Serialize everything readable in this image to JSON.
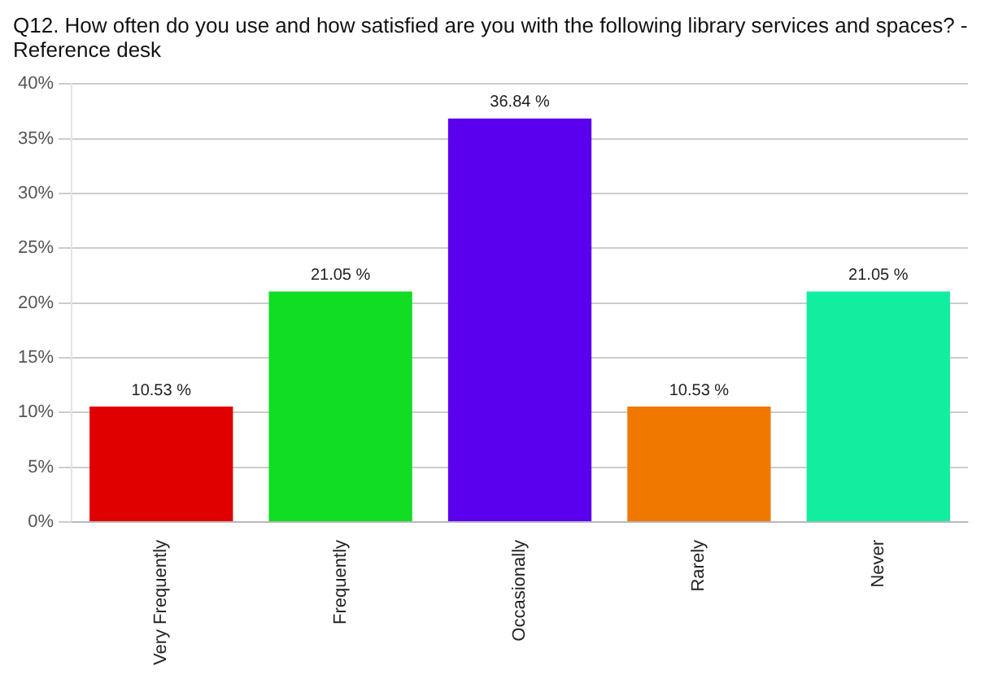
{
  "chart_data": {
    "type": "bar",
    "title": "Q12. How often do you use and how satisfied are you with the following library services and spaces? - Reference desk",
    "categories": [
      "Very Frequently",
      "Frequently",
      "Occasionally",
      "Rarely",
      "Never"
    ],
    "values": [
      10.53,
      21.05,
      36.84,
      10.53,
      21.05
    ],
    "colors": [
      "#e00000",
      "#11dd22",
      "#5a00ee",
      "#f07800",
      "#11eea0"
    ],
    "value_labels": [
      "10.53 %",
      "21.05 %",
      "36.84 %",
      "10.53 %",
      "21.05 %"
    ],
    "ylim": [
      0,
      40
    ],
    "yticks": [
      {
        "value": 0,
        "label": "0%"
      },
      {
        "value": 5,
        "label": "5%"
      },
      {
        "value": 10,
        "label": "10%"
      },
      {
        "value": 15,
        "label": "15%"
      },
      {
        "value": 20,
        "label": "20%"
      },
      {
        "value": 25,
        "label": "25%"
      },
      {
        "value": 30,
        "label": "30%"
      },
      {
        "value": 35,
        "label": "35%"
      },
      {
        "value": 40,
        "label": "40%"
      }
    ],
    "grid": "y",
    "legend": false
  }
}
